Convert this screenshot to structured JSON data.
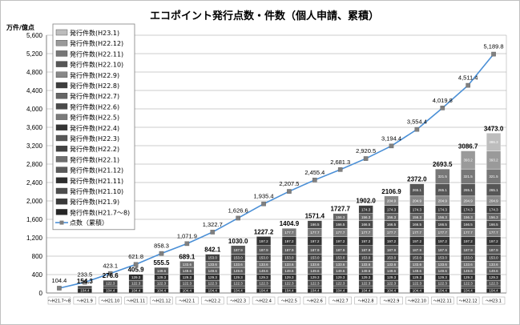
{
  "chart_data": {
    "type": "bar",
    "title": "エコポイント発行点数・件数（個人申請、累積）",
    "ylabel": "万件/億点",
    "ylim": [
      0,
      5600
    ],
    "yticks": [
      "0",
      "400",
      "800",
      "1,200",
      "1,600",
      "2,000",
      "2,400",
      "2,800",
      "3,200",
      "3,600",
      "4,000",
      "4,400",
      "4,800",
      "5,200",
      "5,600"
    ],
    "grid": true,
    "legend_position": "top-left",
    "categories": [
      "H21.7～8",
      "H21.9",
      "H21.10",
      "H21.11",
      "H21.12",
      "H22.1",
      "H22.2",
      "H22.3",
      "H22.4",
      "H22.5",
      "H22.6",
      "H22.7",
      "H22.8",
      "H22.9",
      "H22.10",
      "H22.11",
      "H22.12",
      "H23.1"
    ],
    "bar_totals": [
      null,
      154.3,
      276.6,
      405.9,
      555.5,
      689.1,
      842.1,
      1030.0,
      1227.2,
      1404.9,
      1571.4,
      1727.7,
      1902.0,
      2106.9,
      2372.0,
      2693.5,
      3086.7,
      3473.0
    ],
    "bar_total_labels": [
      "",
      "154.3",
      "276.6",
      "405.9",
      "555.5",
      "689.1",
      "842.1",
      "1030.0",
      "1227.2",
      "1404.9",
      "1571.4",
      "1727.7",
      "1902.0",
      "2106.9",
      "2372.0",
      "2693.5",
      "3086.7",
      "3473.0"
    ],
    "series": [
      {
        "name": "発行件数(H21.7～8)",
        "color": "#262626",
        "value": 104.4
      },
      {
        "name": "発行件数(H21.9)",
        "color": "#3a3a3a",
        "value": 49.9
      },
      {
        "name": "発行件数(H21.10)",
        "color": "#4d4d4d",
        "value": 122.3
      },
      {
        "name": "発行件数(H21.11)",
        "color": "#2e2e2e",
        "value": 129.3
      },
      {
        "name": "発行件数(H21.12)",
        "color": "#5a5a5a",
        "value": 149.6
      },
      {
        "name": "発行件数(H22.1)",
        "color": "#6e6e6e",
        "value": 133.6
      },
      {
        "name": "発行件数(H22.2)",
        "color": "#424242",
        "value": 153.0
      },
      {
        "name": "発行件数(H22.3)",
        "color": "#585858",
        "value": 187.9
      },
      {
        "name": "発行件数(H22.4)",
        "color": "#353535",
        "value": 197.2
      },
      {
        "name": "発行件数(H22.5)",
        "color": "#7a7a7a",
        "value": 177.7
      },
      {
        "name": "発行件数(H22.6)",
        "color": "#4a4a4a",
        "value": 166.5
      },
      {
        "name": "発行件数(H22.7)",
        "color": "#666666",
        "value": 156.3
      },
      {
        "name": "発行件数(H22.8)",
        "color": "#3e3e3e",
        "value": 174.3
      },
      {
        "name": "発行件数(H22.9)",
        "color": "#888888",
        "value": 204.9
      },
      {
        "name": "発行件数(H22.10)",
        "color": "#565656",
        "value": 265.1
      },
      {
        "name": "発行件数(H22.11)",
        "color": "#777777",
        "value": 321.5
      },
      {
        "name": "発行件数(H22.12)",
        "color": "#9a9a9a",
        "value": 393.2
      },
      {
        "name": "発行件数(H23.1)",
        "color": "#bdbdbd",
        "value": 386.3
      }
    ],
    "line": {
      "name": "点数（累積）",
      "color": "#4a8fd6",
      "marker_color": "#808080",
      "values": [
        104.4,
        233.5,
        423.1,
        621.8,
        858.3,
        1071.9,
        1322.7,
        1626.6,
        1935.4,
        2207.5,
        2455.4,
        2681.3,
        2920.5,
        3194.4,
        3554.4,
        4019.8,
        4511.4,
        5189.8
      ],
      "labels": [
        "104.4",
        "233.5",
        "423.1",
        "621.8",
        "858.3",
        "1,071.9",
        "1,322.7",
        "1,626.6",
        "1,935.4",
        "2,207.5",
        "2,455.4",
        "2,681.3",
        "2,920.5",
        "3,194.4",
        "3,554.4",
        "4,019.8",
        "4,511.4",
        "5,189.8"
      ]
    }
  }
}
